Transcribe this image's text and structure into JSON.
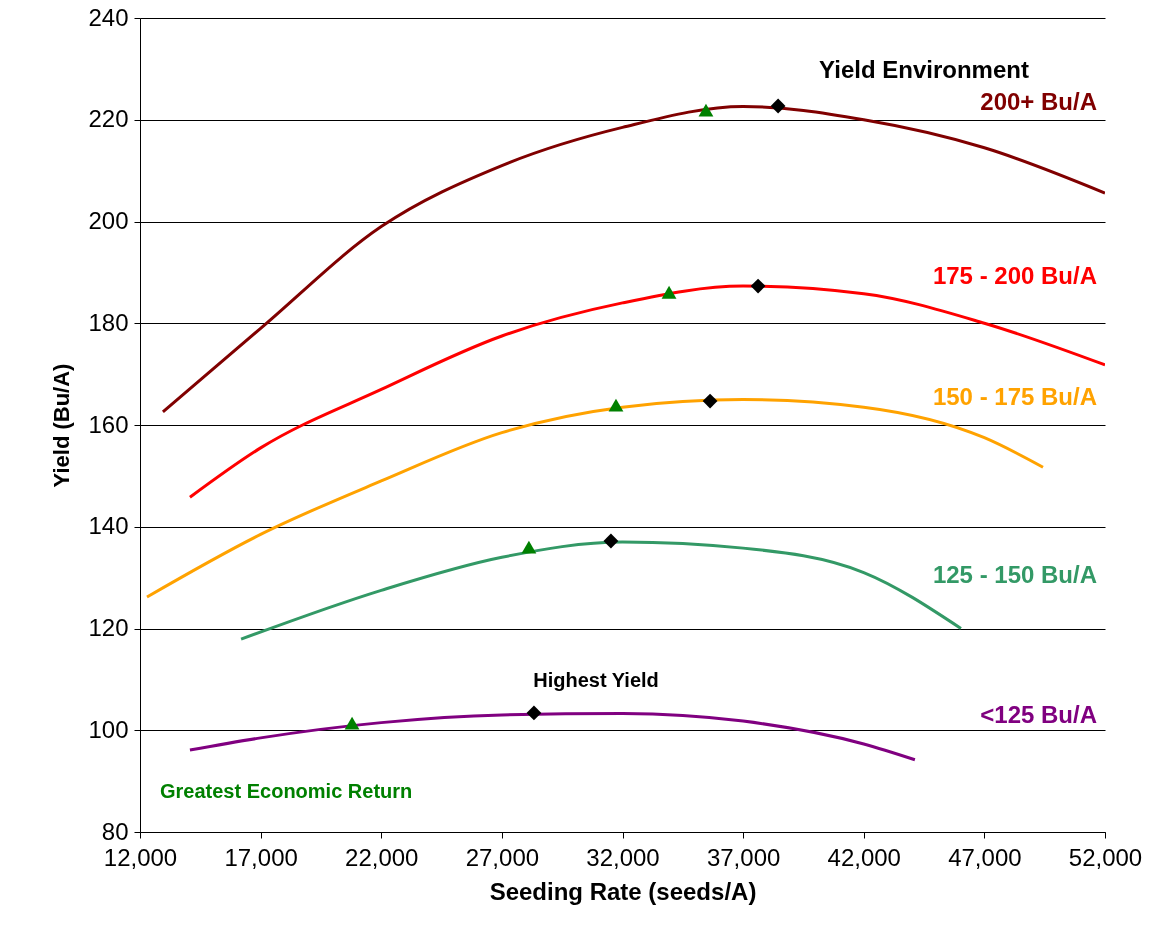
{
  "chart_data": {
    "type": "line",
    "xlabel": "Seeding Rate (seeds/A)",
    "ylabel": "Yield (Bu/A)",
    "xlim": [
      12000,
      52000
    ],
    "xticks": [
      {
        "value": 12000,
        "label": "12,000"
      },
      {
        "value": 17000,
        "label": "17,000"
      },
      {
        "value": 22000,
        "label": "22,000"
      },
      {
        "value": 27000,
        "label": "27,000"
      },
      {
        "value": 32000,
        "label": "32,000"
      },
      {
        "value": 37000,
        "label": "37,000"
      },
      {
        "value": 42000,
        "label": "42,000"
      },
      {
        "value": 47000,
        "label": "47,000"
      },
      {
        "value": 52000,
        "label": "52,000"
      }
    ],
    "ylim": [
      80,
      240
    ],
    "yticks": [
      80,
      100,
      120,
      140,
      160,
      180,
      200,
      220,
      240
    ],
    "grid": "y",
    "line_style": "solid",
    "annotations": [
      "Yield Environment"
    ],
    "series": [
      {
        "name": "200+ Bu/A",
        "color": "#800000",
        "x": [
          12950,
          17000,
          22000,
          27000,
          32000,
          37000,
          42000,
          47000,
          52000
        ],
        "values": [
          162.6,
          179,
          199,
          211,
          218.5,
          222.6,
          220,
          214.5,
          205.6
        ]
      },
      {
        "name": "175 - 200 Bu/A",
        "color": "#ff0000",
        "x": [
          14070,
          17000,
          22000,
          27000,
          32000,
          37000,
          42000,
          47000,
          52000
        ],
        "values": [
          145.8,
          155.5,
          167,
          177.5,
          184,
          187.3,
          185.8,
          180,
          171.8
        ]
      },
      {
        "name": "150 - 175 Bu/A",
        "color": "#ffa200",
        "x": [
          12290,
          17000,
          22000,
          27000,
          32000,
          37000,
          42000,
          47000,
          49430
        ],
        "values": [
          126.2,
          138.5,
          149,
          158.5,
          163.5,
          165,
          163.5,
          157.5,
          151.7
        ]
      },
      {
        "name": "125 - 150 Bu/A",
        "color": "#339966",
        "x": [
          16190,
          22000,
          27000,
          32000,
          37000,
          42000,
          46030
        ],
        "values": [
          117.9,
          127.5,
          134,
          137,
          135.8,
          131,
          120
        ]
      },
      {
        "name": "<125 Bu/A",
        "color": "#800080",
        "x": [
          14070,
          17000,
          22000,
          27000,
          32000,
          37000,
          42000,
          44120
        ],
        "values": [
          96.1,
          98.5,
          101.5,
          103,
          103.3,
          101.8,
          97.3,
          94.2
        ]
      },
      {
        "name": "Greatest Economic Return",
        "type": "scatter",
        "marker": "triangle",
        "color": "#008000",
        "x": [
          35460,
          33930,
          31730,
          28120,
          20790
        ],
        "values": [
          221.9,
          186.1,
          163.9,
          136,
          101.4
        ]
      },
      {
        "name": "Highest Yield",
        "type": "scatter",
        "marker": "diamond",
        "color": "#000000",
        "x": [
          38450,
          37620,
          35630,
          31520,
          28330
        ],
        "values": [
          222.7,
          187.3,
          164.7,
          137.2,
          103.4
        ]
      }
    ]
  }
}
